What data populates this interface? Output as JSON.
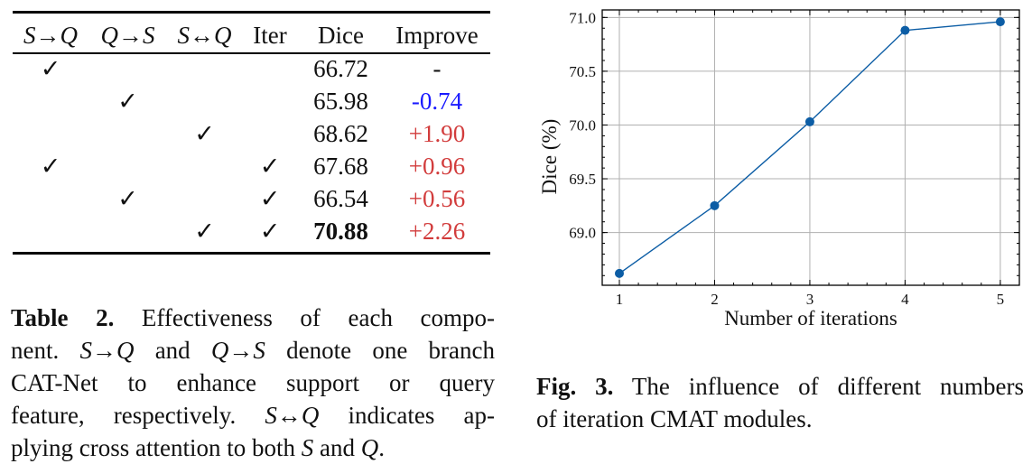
{
  "table": {
    "headers": [
      "S→Q",
      "Q→S",
      "S↔Q",
      "Iter",
      "Dice",
      "Improve"
    ],
    "rows": [
      {
        "sq": "✓",
        "qs": "",
        "both": "",
        "iter": "",
        "dice": "66.72",
        "improve": "-",
        "improve_color": "#111111",
        "bold": false
      },
      {
        "sq": "",
        "qs": "✓",
        "both": "",
        "iter": "",
        "dice": "65.98",
        "improve": "-0.74",
        "improve_color": "#1a1aff",
        "bold": false
      },
      {
        "sq": "",
        "qs": "",
        "both": "✓",
        "iter": "",
        "dice": "68.62",
        "improve": "+1.90",
        "improve_color": "#d23c3c",
        "bold": false
      },
      {
        "sq": "✓",
        "qs": "",
        "both": "",
        "iter": "✓",
        "dice": "67.68",
        "improve": "+0.96",
        "improve_color": "#d23c3c",
        "bold": false
      },
      {
        "sq": "",
        "qs": "✓",
        "both": "",
        "iter": "✓",
        "dice": "66.54",
        "improve": "+0.56",
        "improve_color": "#d23c3c",
        "bold": false
      },
      {
        "sq": "",
        "qs": "",
        "both": "✓",
        "iter": "✓",
        "dice": "70.88",
        "improve": "+2.26",
        "improve_color": "#d23c3c",
        "bold": true
      }
    ],
    "caption": {
      "label": "Table 2.",
      "lines": [
        [
          {
            "t": "Table 2.",
            "b": true
          },
          {
            "t": " Effectiveness of each compo-"
          }
        ],
        [
          {
            "t": "nent. "
          },
          {
            "t": "S",
            "i": true
          },
          {
            "t": "→"
          },
          {
            "t": "Q",
            "i": true
          },
          {
            "t": " and "
          },
          {
            "t": "Q",
            "i": true
          },
          {
            "t": "→"
          },
          {
            "t": "S",
            "i": true
          },
          {
            "t": " denote one branch"
          }
        ],
        [
          {
            "t": "CAT-Net to enhance support or query"
          }
        ],
        [
          {
            "t": "feature, respectively. "
          },
          {
            "t": "S",
            "i": true
          },
          {
            "t": "↔"
          },
          {
            "t": "Q",
            "i": true
          },
          {
            "t": " indicates ap-"
          }
        ],
        [
          {
            "t": "plying cross attention to both "
          },
          {
            "t": "S",
            "i": true
          },
          {
            "t": " and "
          },
          {
            "t": "Q",
            "i": true
          },
          {
            "t": "."
          }
        ]
      ]
    }
  },
  "figure": {
    "caption": {
      "lines": [
        [
          {
            "t": "Fig. 3.",
            "b": true
          },
          {
            "t": " The influence of different numbers"
          }
        ],
        [
          {
            "t": "of iteration CMAT modules."
          }
        ]
      ]
    }
  },
  "chart_data": {
    "type": "line",
    "title": "",
    "xlabel": "Number of iterations",
    "ylabel": "Dice (%)",
    "x": [
      1,
      2,
      3,
      4,
      5
    ],
    "values": [
      68.62,
      69.25,
      70.03,
      70.88,
      70.96
    ],
    "xticks": [
      "1",
      "2",
      "3",
      "4",
      "5"
    ],
    "yticks": [
      "69.0",
      "69.5",
      "70.0",
      "70.5",
      "71.0"
    ],
    "xlim": [
      0.82,
      5.2
    ],
    "ylim": [
      68.51,
      71.07
    ],
    "grid": true,
    "marker": "circle",
    "color": "#0c5da5"
  }
}
